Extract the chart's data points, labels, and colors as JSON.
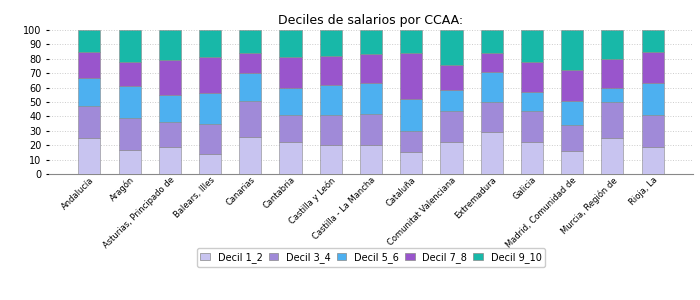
{
  "title": "Deciles de salarios por CCAA:",
  "categories": [
    "Andalucía",
    "Aragón",
    "Asturias, Principado de",
    "Balears, Illes",
    "Canarias",
    "Cantabria",
    "Castilla y León",
    "Castilla - La Mancha",
    "Cataluña",
    "Comunitat Valenciana",
    "Extremadura",
    "Galicia",
    "Madrid, Comunidad de",
    "Murcia, Región de",
    "Rioja, La"
  ],
  "decil_1_2": [
    25,
    17,
    19,
    14,
    26,
    22,
    20,
    20,
    15,
    22,
    29,
    22,
    16,
    25,
    19
  ],
  "decil_3_4": [
    22,
    22,
    17,
    21,
    25,
    19,
    21,
    22,
    15,
    22,
    21,
    22,
    18,
    25,
    22
  ],
  "decil_5_6": [
    20,
    22,
    19,
    21,
    19,
    19,
    21,
    21,
    22,
    14,
    21,
    13,
    17,
    10,
    22
  ],
  "decil_7_8": [
    18,
    17,
    24,
    25,
    14,
    21,
    20,
    20,
    32,
    18,
    13,
    21,
    21,
    20,
    22
  ],
  "decil_9_10": [
    15,
    22,
    21,
    19,
    16,
    19,
    18,
    17,
    16,
    24,
    16,
    22,
    28,
    20,
    15
  ],
  "colors": {
    "decil_1_2": "#c8c4f0",
    "decil_3_4": "#a08ad8",
    "decil_5_6": "#4db0f0",
    "decil_7_8": "#9955cc",
    "decil_9_10": "#18b8a8"
  },
  "legend_labels": [
    "Decil 1_2",
    "Decil 3_4",
    "Decil 5_6",
    "Decil 7_8",
    "Decil 9_10"
  ],
  "ylim": [
    0,
    100
  ],
  "yticks": [
    0,
    10,
    20,
    30,
    40,
    50,
    60,
    70,
    80,
    90,
    100
  ],
  "background_color": "#ffffff",
  "grid_color": "#cccccc"
}
